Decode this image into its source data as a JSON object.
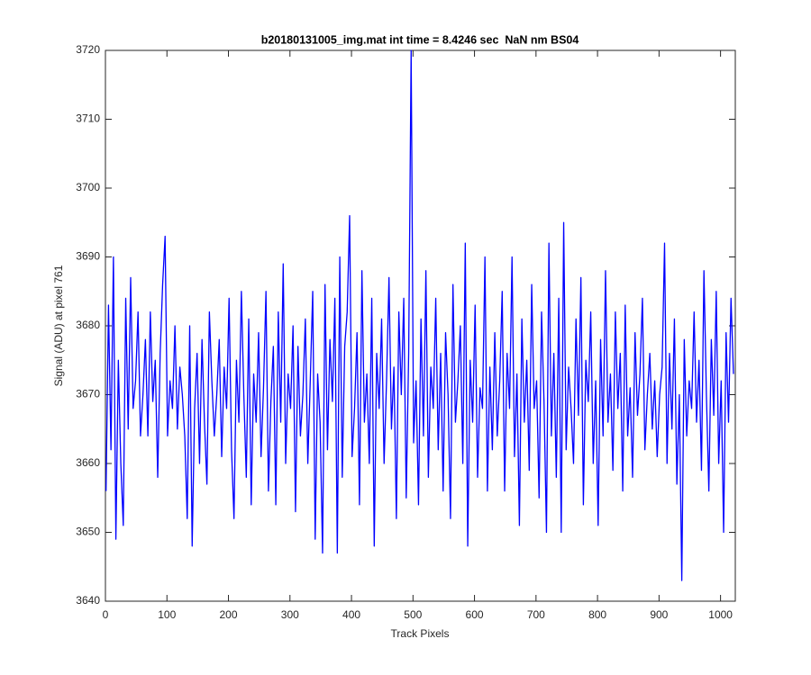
{
  "chart_data": {
    "type": "line",
    "title": "b20180131005_img.mat int time = 8.4246 sec  NaN nm BS04",
    "xlabel": "Track Pixels",
    "ylabel": "Signal (ADU) at pixel 761",
    "color": "#0000ff",
    "xlim": [
      0,
      1024
    ],
    "xticks": [
      0,
      100,
      200,
      300,
      400,
      500,
      600,
      700,
      800,
      900,
      1000
    ],
    "ylim": [
      3640,
      3720
    ],
    "yticks": [
      3640,
      3650,
      3660,
      3670,
      3680,
      3690,
      3700,
      3710,
      3720
    ],
    "x": [
      1,
      5,
      9,
      13,
      17,
      21,
      25,
      29,
      33,
      37,
      41,
      45,
      49,
      53,
      57,
      61,
      65,
      69,
      73,
      77,
      81,
      85,
      89,
      93,
      97,
      101,
      105,
      109,
      113,
      117,
      121,
      125,
      129,
      133,
      137,
      141,
      145,
      149,
      153,
      157,
      161,
      165,
      169,
      173,
      177,
      181,
      185,
      189,
      193,
      197,
      201,
      205,
      209,
      213,
      217,
      221,
      225,
      229,
      233,
      237,
      241,
      245,
      249,
      253,
      257,
      261,
      265,
      269,
      273,
      277,
      281,
      285,
      289,
      293,
      297,
      301,
      305,
      309,
      313,
      317,
      321,
      325,
      329,
      333,
      337,
      341,
      345,
      349,
      353,
      357,
      361,
      365,
      369,
      373,
      377,
      381,
      385,
      389,
      393,
      397,
      401,
      405,
      409,
      413,
      417,
      421,
      425,
      429,
      433,
      437,
      441,
      445,
      449,
      453,
      457,
      461,
      465,
      469,
      473,
      477,
      481,
      485,
      489,
      493,
      497,
      501,
      505,
      509,
      513,
      517,
      521,
      525,
      529,
      533,
      537,
      541,
      545,
      549,
      553,
      557,
      561,
      565,
      569,
      573,
      577,
      581,
      585,
      589,
      593,
      597,
      601,
      605,
      609,
      613,
      617,
      621,
      625,
      629,
      633,
      637,
      641,
      645,
      649,
      653,
      657,
      661,
      665,
      669,
      673,
      677,
      681,
      685,
      689,
      693,
      697,
      701,
      705,
      709,
      713,
      717,
      721,
      725,
      729,
      733,
      737,
      741,
      745,
      749,
      753,
      757,
      761,
      765,
      769,
      773,
      777,
      781,
      785,
      789,
      793,
      797,
      801,
      805,
      809,
      813,
      817,
      821,
      825,
      829,
      833,
      837,
      841,
      845,
      849,
      853,
      857,
      861,
      865,
      869,
      873,
      877,
      881,
      885,
      889,
      893,
      897,
      901,
      905,
      909,
      913,
      917,
      921,
      925,
      929,
      933,
      937,
      941,
      945,
      949,
      953,
      957,
      961,
      965,
      969,
      973,
      977,
      981,
      985,
      989,
      993,
      997,
      1001,
      1005,
      1009,
      1013,
      1017,
      1021
    ],
    "values": [
      3656,
      3683,
      3662,
      3690,
      3649,
      3675,
      3660,
      3651,
      3684,
      3665,
      3687,
      3668,
      3672,
      3682,
      3664,
      3670,
      3678,
      3664,
      3682,
      3669,
      3675,
      3658,
      3676,
      3686,
      3693,
      3664,
      3672,
      3668,
      3680,
      3665,
      3674,
      3670,
      3664,
      3652,
      3680,
      3648,
      3668,
      3676,
      3660,
      3678,
      3666,
      3657,
      3682,
      3672,
      3664,
      3670,
      3678,
      3661,
      3674,
      3668,
      3684,
      3662,
      3652,
      3675,
      3666,
      3685,
      3670,
      3658,
      3681,
      3654,
      3673,
      3666,
      3679,
      3661,
      3671,
      3685,
      3656,
      3669,
      3677,
      3654,
      3682,
      3666,
      3689,
      3660,
      3673,
      3668,
      3680,
      3653,
      3677,
      3664,
      3670,
      3681,
      3660,
      3672,
      3685,
      3649,
      3673,
      3666,
      3647,
      3686,
      3662,
      3678,
      3669,
      3684,
      3647,
      3690,
      3658,
      3677,
      3682,
      3696,
      3661,
      3668,
      3679,
      3654,
      3688,
      3666,
      3673,
      3660,
      3684,
      3648,
      3676,
      3668,
      3681,
      3660,
      3672,
      3687,
      3665,
      3674,
      3652,
      3682,
      3670,
      3684,
      3655,
      3676,
      3720,
      3663,
      3672,
      3654,
      3681,
      3664,
      3688,
      3658,
      3674,
      3668,
      3684,
      3662,
      3676,
      3656,
      3679,
      3670,
      3652,
      3686,
      3666,
      3672,
      3680,
      3660,
      3692,
      3648,
      3675,
      3666,
      3683,
      3658,
      3671,
      3668,
      3690,
      3656,
      3674,
      3662,
      3679,
      3664,
      3672,
      3685,
      3656,
      3676,
      3668,
      3690,
      3661,
      3673,
      3651,
      3681,
      3666,
      3675,
      3659,
      3686,
      3668,
      3672,
      3655,
      3682,
      3669,
      3650,
      3692,
      3664,
      3676,
      3658,
      3684,
      3650,
      3695,
      3662,
      3674,
      3668,
      3660,
      3681,
      3667,
      3687,
      3654,
      3675,
      3669,
      3682,
      3660,
      3672,
      3651,
      3678,
      3664,
      3688,
      3666,
      3673,
      3659,
      3682,
      3668,
      3676,
      3656,
      3683,
      3664,
      3671,
      3658,
      3679,
      3667,
      3673,
      3684,
      3662,
      3670,
      3676,
      3665,
      3672,
      3661,
      3670,
      3674,
      3692,
      3660,
      3676,
      3665,
      3681,
      3657,
      3670,
      3643,
      3678,
      3664,
      3672,
      3668,
      3682,
      3666,
      3675,
      3659,
      3688,
      3670,
      3656,
      3678,
      3667,
      3685,
      3660,
      3672,
      3650,
      3679,
      3666,
      3684,
      3673
    ]
  }
}
